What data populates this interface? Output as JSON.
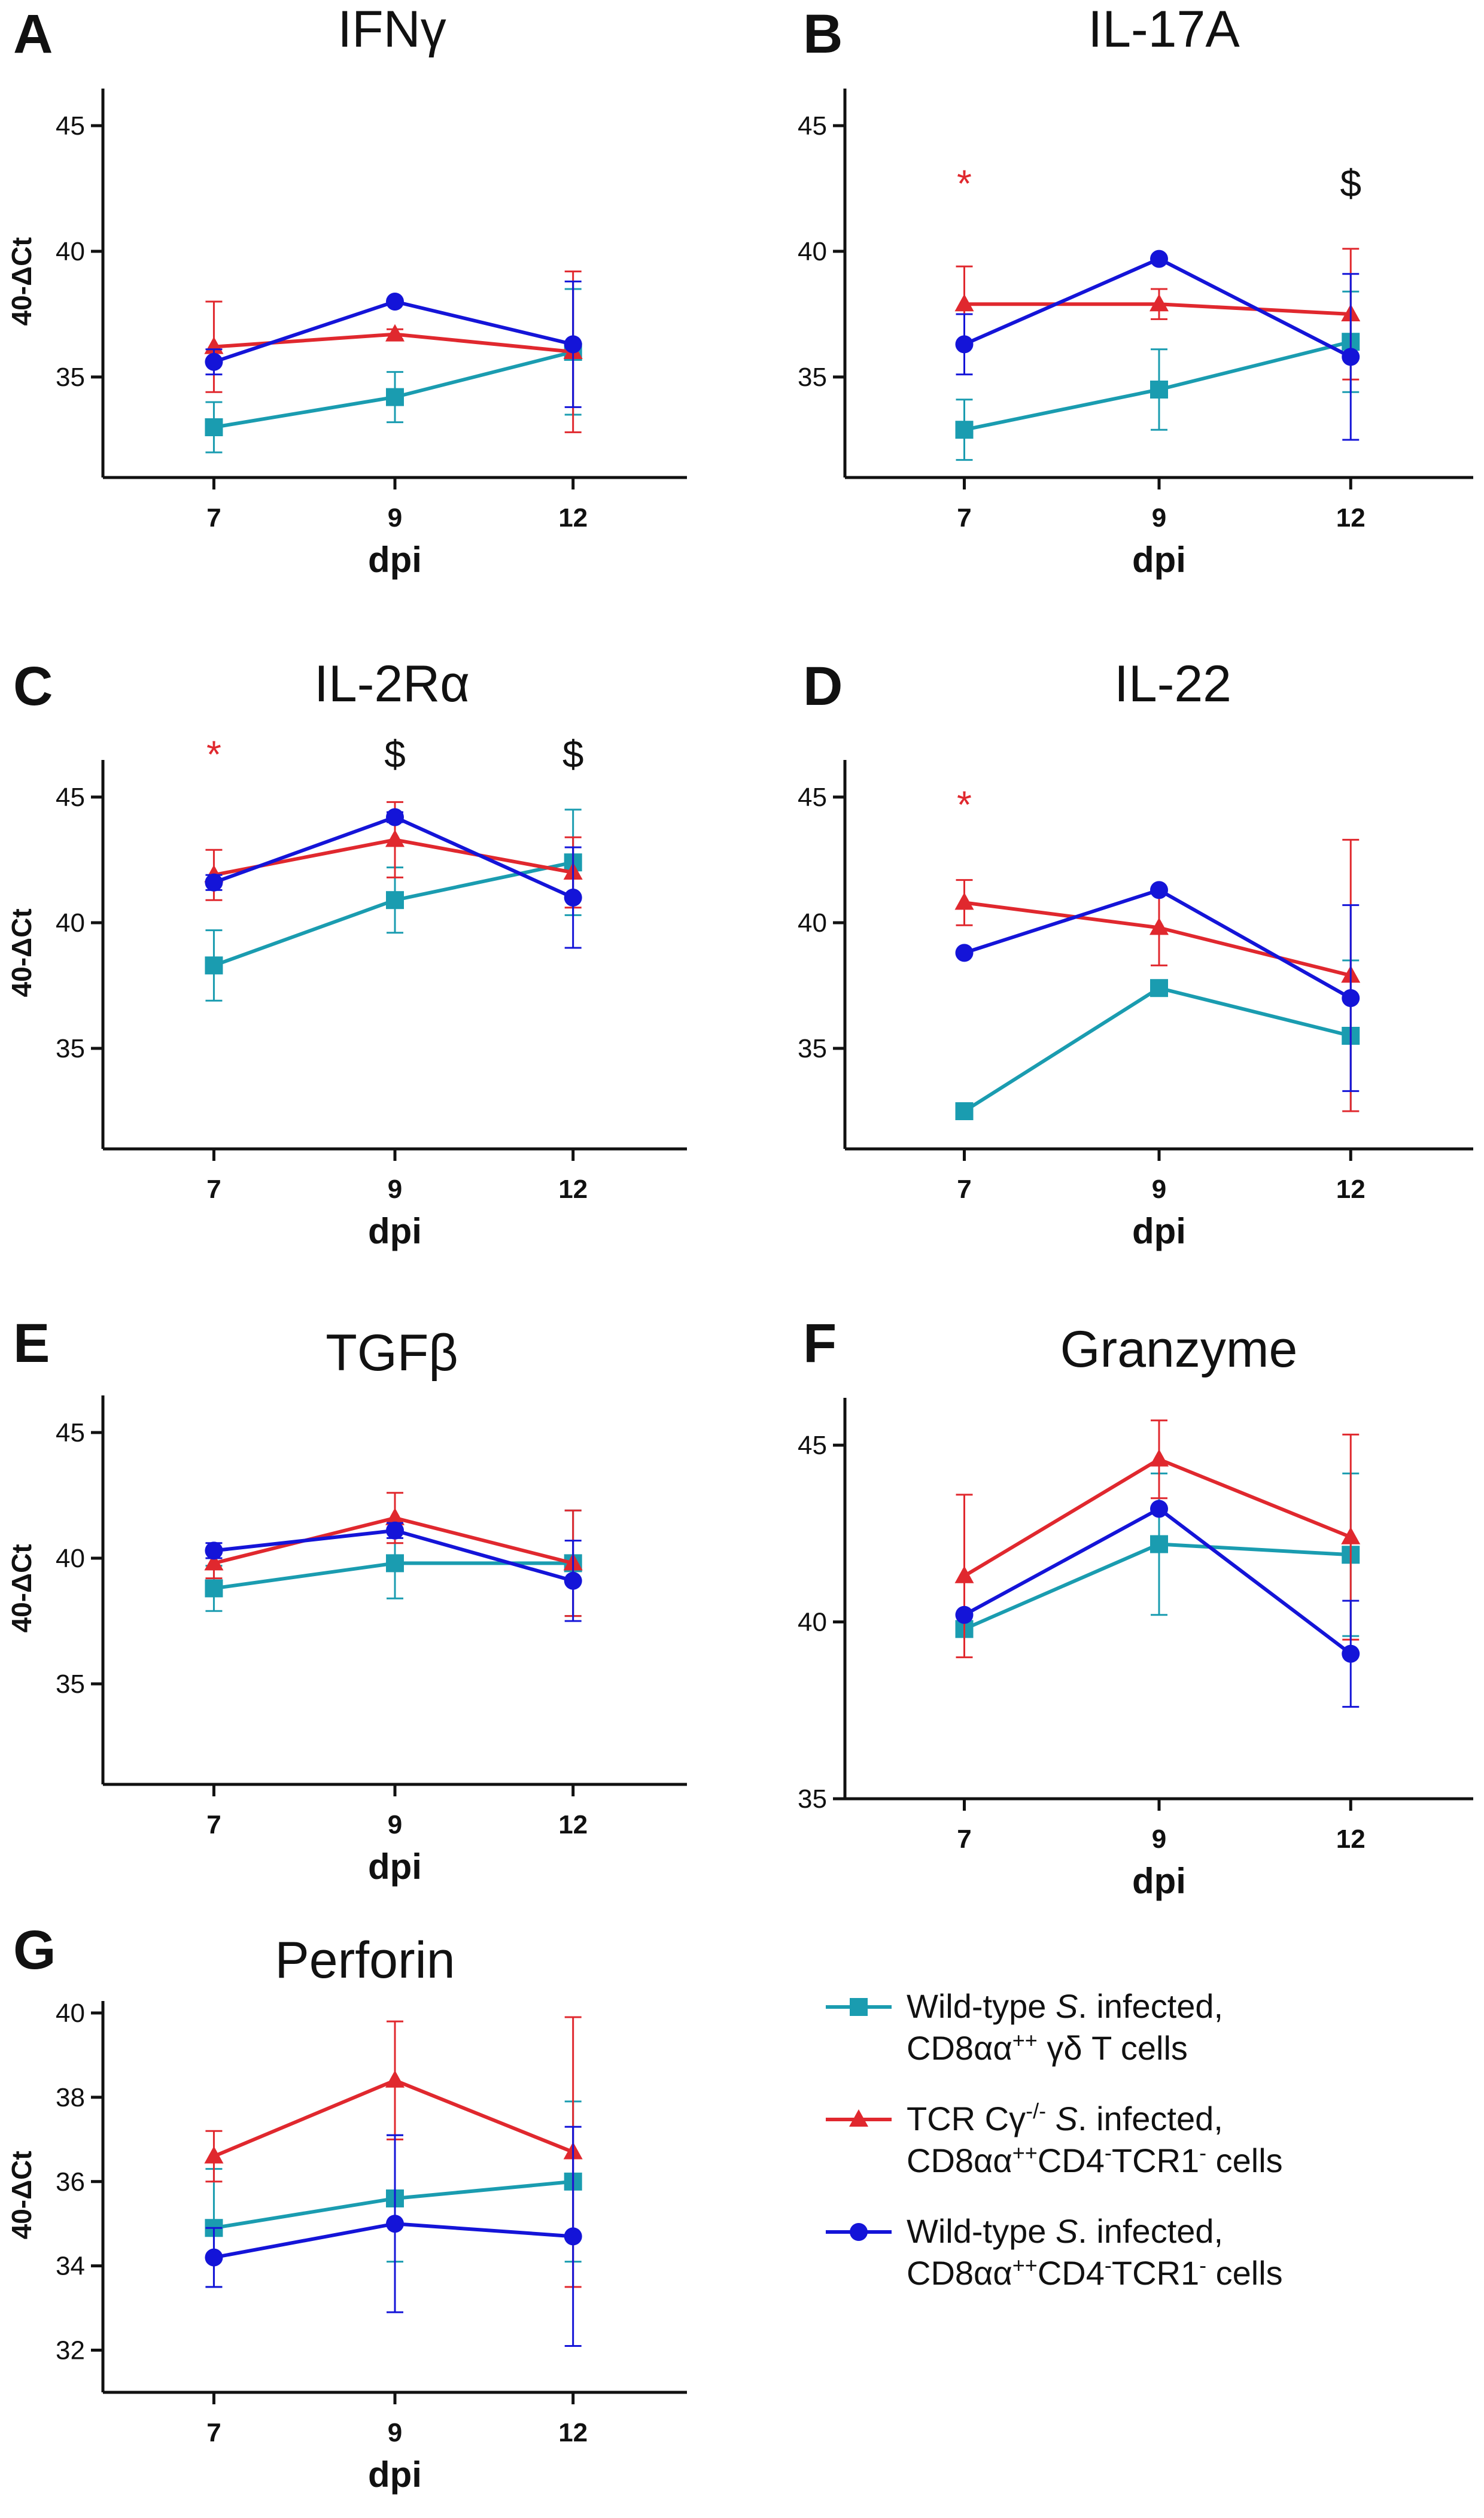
{
  "figure": {
    "series_meta": [
      {
        "key": "wt_gd",
        "color": "#1a9cb0",
        "marker": "square"
      },
      {
        "key": "ko_cd8",
        "color": "#e0282e",
        "marker": "triangle"
      },
      {
        "key": "wt_cd8",
        "color": "#1414d8",
        "marker": "circle"
      }
    ],
    "legend": [
      {
        "lines": [
          [
            {
              "t": "Wild-type "
            },
            {
              "t": "S",
              "it": true
            },
            {
              "t": ". infected,"
            }
          ],
          [
            {
              "t": "CD8αα"
            },
            {
              "t": "++",
              "sup": true
            },
            {
              "t": " γδ T cells"
            }
          ]
        ]
      },
      {
        "lines": [
          [
            {
              "t": "TCR Cγ"
            },
            {
              "t": "-/-",
              "sup": true
            },
            {
              "t": " "
            },
            {
              "t": "S",
              "it": true
            },
            {
              "t": ". infected,"
            }
          ],
          [
            {
              "t": "CD8αα"
            },
            {
              "t": "++",
              "sup": true
            },
            {
              "t": "CD4"
            },
            {
              "t": "-",
              "sup": true
            },
            {
              "t": "TCR1"
            },
            {
              "t": "-",
              "sup": true
            },
            {
              "t": " cells"
            }
          ]
        ]
      },
      {
        "lines": [
          [
            {
              "t": "Wild-type "
            },
            {
              "t": "S",
              "it": true
            },
            {
              "t": ". infected,"
            }
          ],
          [
            {
              "t": "CD8αα"
            },
            {
              "t": "++",
              "sup": true
            },
            {
              "t": "CD4"
            },
            {
              "t": "-",
              "sup": true
            },
            {
              "t": "TCR1"
            },
            {
              "t": "-",
              "sup": true
            },
            {
              "t": " cells"
            }
          ]
        ]
      }
    ]
  },
  "chart_data": [
    {
      "type": "line",
      "letter": "A",
      "title": "IFNγ",
      "xlabel": "dpi",
      "ylabel": "40-ΔCt",
      "categories": [
        "7",
        "9",
        "12"
      ],
      "ylim": [
        31,
        46
      ],
      "yticks": [
        35,
        40,
        45
      ],
      "series": [
        {
          "name": "Wild-type S. infected, CD8αα++ γδ T cells",
          "values": [
            33.0,
            34.2,
            36.0
          ],
          "err_up": [
            1.0,
            1.0,
            2.5
          ],
          "err_dn": [
            1.0,
            1.0,
            2.5
          ]
        },
        {
          "name": "TCR Cγ-/- S. infected, CD8αα++CD4-TCR1- cells",
          "values": [
            36.2,
            36.7,
            36.0
          ],
          "err_up": [
            1.8,
            0.2,
            3.2
          ],
          "err_dn": [
            1.8,
            0.2,
            3.2
          ]
        },
        {
          "name": "Wild-type S. infected, CD8αα++CD4-TCR1- cells",
          "values": [
            35.6,
            38.0,
            36.3
          ],
          "err_up": [
            0.5,
            0.1,
            2.5
          ],
          "err_dn": [
            0.5,
            0.1,
            2.5
          ]
        }
      ],
      "annotations": []
    },
    {
      "type": "line",
      "letter": "B",
      "title": "IL-17A",
      "xlabel": "dpi",
      "ylabel": "",
      "categories": [
        "7",
        "9",
        "12"
      ],
      "ylim": [
        31,
        46
      ],
      "yticks": [
        35,
        40,
        45
      ],
      "series": [
        {
          "name": "Wild-type S. infected, CD8αα++ γδ T cells",
          "values": [
            32.9,
            34.5,
            36.4
          ],
          "err_up": [
            1.2,
            1.6,
            2.0
          ],
          "err_dn": [
            1.2,
            1.6,
            2.0
          ]
        },
        {
          "name": "TCR Cγ-/- S. infected, CD8αα++CD4-TCR1- cells",
          "values": [
            37.9,
            37.9,
            37.5
          ],
          "err_up": [
            1.5,
            0.6,
            2.6
          ],
          "err_dn": [
            1.5,
            0.6,
            2.6
          ]
        },
        {
          "name": "Wild-type S. infected, CD8αα++CD4-TCR1- cells",
          "values": [
            36.3,
            39.7,
            35.8
          ],
          "err_up": [
            1.2,
            0.1,
            3.3
          ],
          "err_dn": [
            1.2,
            0.1,
            3.3
          ]
        }
      ],
      "annotations": [
        {
          "text": "*",
          "x": "7",
          "y": 42.7,
          "color": "#e0282e"
        },
        {
          "text": "$",
          "x": "12",
          "y": 42.7,
          "color": "#111111"
        }
      ]
    },
    {
      "type": "line",
      "letter": "C",
      "title": "IL-2Rα",
      "xlabel": "dpi",
      "ylabel": "40-ΔCt",
      "categories": [
        "7",
        "9",
        "12"
      ],
      "ylim": [
        31,
        46
      ],
      "yticks": [
        35,
        40,
        45
      ],
      "series": [
        {
          "name": "Wild-type S. infected, CD8αα++ γδ T cells",
          "values": [
            38.3,
            40.9,
            42.4
          ],
          "err_up": [
            1.4,
            1.3,
            2.1
          ],
          "err_dn": [
            1.4,
            1.3,
            2.1
          ]
        },
        {
          "name": "TCR Cγ-/- S. infected, CD8αα++CD4-TCR1- cells",
          "values": [
            41.9,
            43.3,
            42.0
          ],
          "err_up": [
            1.0,
            1.5,
            1.4
          ],
          "err_dn": [
            1.0,
            1.5,
            1.4
          ]
        },
        {
          "name": "Wild-type S. infected, CD8αα++CD4-TCR1- cells",
          "values": [
            41.6,
            44.2,
            41.0
          ],
          "err_up": [
            0.3,
            0.2,
            2.0
          ],
          "err_dn": [
            0.3,
            0.2,
            2.0
          ]
        }
      ],
      "annotations": [
        {
          "text": "*",
          "x": "7",
          "y": 46.7,
          "color": "#e0282e"
        },
        {
          "text": "$",
          "x": "9",
          "y": 46.7,
          "color": "#111111"
        },
        {
          "text": "$",
          "x": "12",
          "y": 46.7,
          "color": "#111111"
        }
      ]
    },
    {
      "type": "line",
      "letter": "D",
      "title": "IL-22",
      "xlabel": "dpi",
      "ylabel": "",
      "categories": [
        "7",
        "9",
        "12"
      ],
      "ylim": [
        31,
        46
      ],
      "yticks": [
        35,
        40,
        45
      ],
      "series": [
        {
          "name": "Wild-type S. infected, CD8αα++ γδ T cells",
          "values": [
            32.5,
            37.4,
            35.5
          ],
          "err_up": [
            0.0,
            0.0,
            3.0
          ],
          "err_dn": [
            0.0,
            0.0,
            3.0
          ]
        },
        {
          "name": "TCR Cγ-/- S. infected, CD8αα++CD4-TCR1- cells",
          "values": [
            40.8,
            39.8,
            37.9
          ],
          "err_up": [
            0.9,
            1.5,
            5.4
          ],
          "err_dn": [
            0.9,
            1.5,
            5.4
          ]
        },
        {
          "name": "Wild-type S. infected, CD8αα++CD4-TCR1- cells",
          "values": [
            38.8,
            41.3,
            37.0
          ],
          "err_up": [
            0.0,
            0.0,
            3.7
          ],
          "err_dn": [
            0.0,
            0.0,
            3.7
          ]
        }
      ],
      "annotations": [
        {
          "text": "*",
          "x": "7",
          "y": 44.7,
          "color": "#e0282e"
        }
      ]
    },
    {
      "type": "line",
      "letter": "E",
      "title": "TGFβ",
      "xlabel": "dpi",
      "ylabel": "40-ΔCt",
      "categories": [
        "7",
        "9",
        "12"
      ],
      "ylim": [
        31,
        46
      ],
      "yticks": [
        35,
        40,
        45
      ],
      "series": [
        {
          "name": "Wild-type S. infected, CD8αα++ γδ T cells",
          "values": [
            38.8,
            39.8,
            39.8
          ],
          "err_up": [
            0.9,
            1.4,
            2.1
          ],
          "err_dn": [
            0.9,
            1.4,
            2.1
          ]
        },
        {
          "name": "TCR Cγ-/- S. infected, CD8αα++CD4-TCR1- cells",
          "values": [
            39.8,
            41.6,
            39.8
          ],
          "err_up": [
            0.6,
            1.0,
            2.1
          ],
          "err_dn": [
            0.6,
            1.0,
            2.1
          ]
        },
        {
          "name": "Wild-type S. infected, CD8αα++CD4-TCR1- cells",
          "values": [
            40.3,
            41.1,
            39.1
          ],
          "err_up": [
            0.3,
            0.3,
            1.6
          ],
          "err_dn": [
            0.3,
            0.3,
            1.6
          ]
        }
      ],
      "annotations": []
    },
    {
      "type": "line",
      "letter": "F",
      "title": "Granzyme",
      "xlabel": "dpi",
      "ylabel": "",
      "categories": [
        "7",
        "9",
        "12"
      ],
      "ylim": [
        35,
        46
      ],
      "yticks": [
        35,
        40,
        45
      ],
      "series": [
        {
          "name": "Wild-type S. infected, CD8αα++ γδ T cells",
          "values": [
            39.8,
            42.2,
            41.9
          ],
          "err_up": [
            0.0,
            2.0,
            2.3
          ],
          "err_dn": [
            0.0,
            2.0,
            2.3
          ]
        },
        {
          "name": "TCR Cγ-/- S. infected, CD8αα++CD4-TCR1- cells",
          "values": [
            41.3,
            44.6,
            42.4
          ],
          "err_up": [
            2.3,
            1.1,
            2.9
          ],
          "err_dn": [
            2.3,
            1.1,
            2.9
          ]
        },
        {
          "name": "Wild-type S. infected, CD8αα++CD4-TCR1- cells",
          "values": [
            40.2,
            43.2,
            39.1
          ],
          "err_up": [
            0.0,
            0.0,
            1.5
          ],
          "err_dn": [
            0.0,
            0.0,
            1.5
          ]
        }
      ],
      "annotations": []
    },
    {
      "type": "line",
      "letter": "G",
      "title": "Perforin",
      "xlabel": "dpi",
      "ylabel": "40-ΔCt",
      "categories": [
        "7",
        "9",
        "12"
      ],
      "ylim": [
        31,
        40
      ],
      "yticks": [
        32,
        34,
        36,
        38,
        40
      ],
      "series": [
        {
          "name": "Wild-type S. infected, CD8αα++ γδ T cells",
          "values": [
            34.9,
            35.6,
            36.0
          ],
          "err_up": [
            1.4,
            1.5,
            1.9
          ],
          "err_dn": [
            1.4,
            1.5,
            1.9
          ]
        },
        {
          "name": "TCR Cγ-/- S. infected, CD8αα++CD4-TCR1- cells",
          "values": [
            36.6,
            38.4,
            36.7
          ],
          "err_up": [
            0.6,
            1.4,
            3.2
          ],
          "err_dn": [
            0.6,
            1.4,
            3.2
          ]
        },
        {
          "name": "Wild-type S. infected, CD8αα++CD4-TCR1- cells",
          "values": [
            34.2,
            35.0,
            34.7
          ],
          "err_up": [
            0.7,
            2.1,
            2.6
          ],
          "err_dn": [
            0.7,
            2.1,
            2.6
          ]
        }
      ],
      "annotations": []
    }
  ]
}
